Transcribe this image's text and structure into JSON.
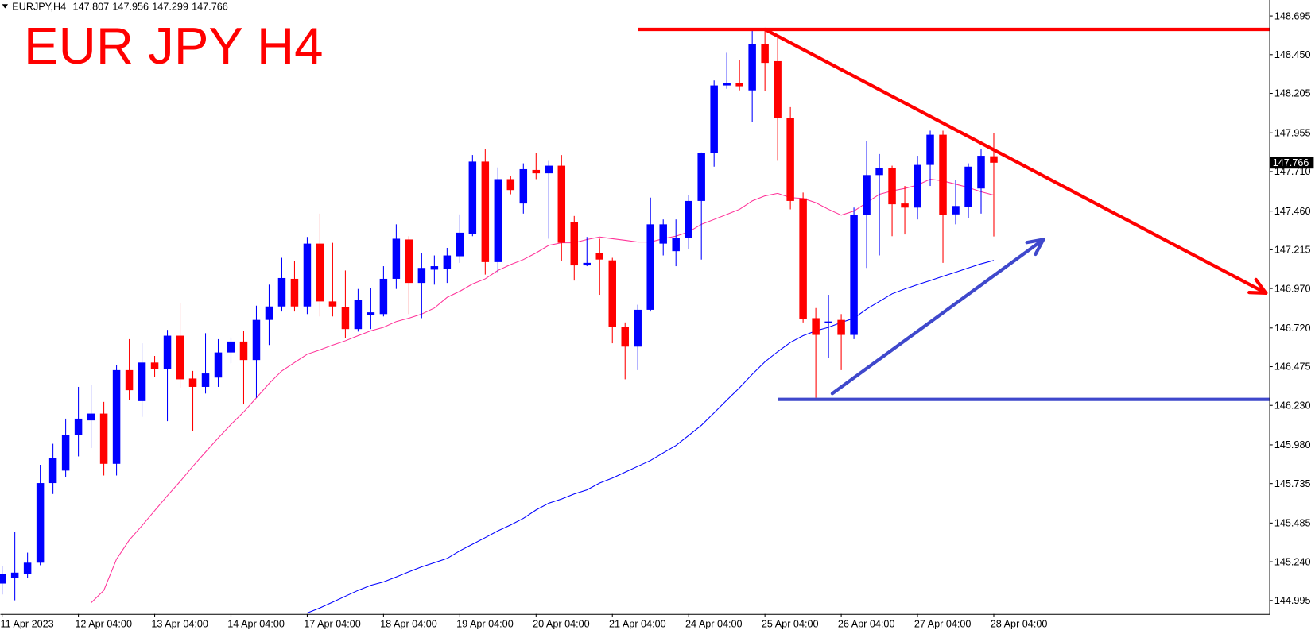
{
  "chart_data": {
    "type": "candlestick",
    "symbol": "EURJPY,H4",
    "title": "EUR JPY H4",
    "up_color": "#0000ff",
    "down_color": "#ff0000",
    "categories": [
      "11 Apr 2023",
      null,
      null,
      null,
      null,
      null,
      "12 Apr 04:00",
      null,
      null,
      null,
      null,
      null,
      "13 Apr 04:00",
      null,
      null,
      null,
      null,
      null,
      "14 Apr 04:00",
      null,
      null,
      null,
      null,
      null,
      "17 Apr 04:00",
      null,
      null,
      null,
      null,
      null,
      "18 Apr 04:00",
      null,
      null,
      null,
      null,
      null,
      "19 Apr 04:00",
      null,
      null,
      null,
      null,
      null,
      "20 Apr 04:00",
      null,
      null,
      null,
      null,
      null,
      "21 Apr 04:00",
      null,
      null,
      null,
      null,
      null,
      "24 Apr 04:00",
      null,
      null,
      null,
      null,
      null,
      "25 Apr 04:00",
      null,
      null,
      null,
      null,
      null,
      "26 Apr 04:00",
      null,
      null,
      null,
      null,
      null,
      "27 Apr 04:00",
      null,
      null,
      null,
      null,
      null,
      "28 Apr 04:00"
    ],
    "open": [
      145.102,
      145.139,
      145.16,
      145.234,
      145.738,
      145.817,
      146.045,
      146.135,
      146.178,
      145.86,
      146.453,
      146.257,
      146.501,
      146.459,
      146.671,
      146.4,
      146.347,
      146.406,
      146.565,
      146.634,
      146.517,
      146.771,
      146.856,
      147.031,
      146.856,
      147.254,
      146.888,
      146.851,
      146.713,
      146.803,
      146.808,
      147.031,
      147.28,
      147.005,
      147.089,
      147.095,
      147.174,
      147.317,
      147.773,
      147.137,
      147.662,
      147.508,
      147.72,
      147.699,
      147.747,
      147.391,
      147.116,
      147.195,
      147.148,
      146.724,
      146.602,
      146.835,
      147.254,
      147.206,
      147.291,
      147.524,
      147.826,
      148.255,
      148.271,
      148.224,
      148.515,
      148.409,
      148.049,
      147.54,
      146.782,
      146.75,
      146.771,
      146.676,
      147.434,
      147.688,
      147.731,
      147.508,
      147.482,
      147.752,
      147.943,
      147.439,
      147.487,
      147.603,
      147.807
    ],
    "high": [
      145.213,
      145.43,
      145.298,
      145.854,
      145.987,
      146.146,
      146.347,
      146.358,
      146.252,
      146.485,
      146.649,
      146.623,
      146.543,
      146.708,
      146.877,
      146.448,
      146.687,
      146.649,
      146.66,
      146.702,
      146.861,
      146.994,
      147.164,
      147.142,
      147.296,
      147.444,
      147.259,
      147.084,
      146.967,
      146.973,
      147.111,
      147.376,
      147.301,
      147.195,
      147.179,
      147.227,
      147.439,
      147.815,
      147.853,
      147.736,
      147.683,
      147.762,
      147.826,
      147.778,
      147.815,
      147.429,
      147.296,
      147.285,
      147.164,
      146.755,
      146.867,
      147.545,
      147.407,
      147.407,
      147.561,
      147.831,
      148.287,
      148.462,
      148.414,
      148.605,
      148.61,
      148.557,
      148.118,
      147.577,
      146.846,
      146.93,
      146.808,
      147.482,
      147.906,
      147.821,
      147.747,
      147.619,
      147.81,
      147.969,
      147.969,
      147.656,
      147.762,
      147.853,
      147.956
    ],
    "low": [
      145.033,
      144.996,
      145.139,
      145.218,
      145.669,
      145.775,
      145.907,
      145.96,
      145.786,
      145.786,
      146.263,
      146.157,
      146.411,
      146.13,
      146.342,
      146.066,
      146.305,
      146.347,
      146.496,
      146.236,
      146.278,
      146.612,
      146.824,
      146.824,
      146.808,
      146.793,
      146.793,
      146.655,
      146.697,
      146.713,
      146.793,
      146.967,
      146.808,
      146.782,
      146.994,
      147.005,
      147.132,
      147.301,
      147.058,
      147.068,
      147.566,
      147.444,
      147.662,
      147.285,
      147.142,
      147.02,
      147.111,
      146.93,
      146.623,
      146.395,
      146.453,
      146.824,
      147.179,
      147.111,
      147.222,
      147.153,
      147.741,
      148.234,
      148.224,
      148.022,
      148.218,
      147.778,
      147.471,
      146.755,
      146.278,
      146.528,
      146.453,
      146.649,
      147.1,
      147.179,
      147.301,
      147.312,
      147.407,
      147.619,
      147.132,
      147.376,
      147.418,
      147.444,
      147.299
    ],
    "close": [
      145.165,
      145.171,
      145.234,
      145.738,
      145.897,
      146.045,
      146.146,
      146.178,
      145.86,
      146.453,
      146.326,
      146.501,
      146.459,
      146.671,
      146.395,
      146.347,
      146.432,
      146.565,
      146.634,
      146.517,
      146.771,
      146.856,
      147.036,
      146.856,
      147.254,
      146.888,
      146.856,
      146.713,
      146.899,
      146.819,
      147.031,
      147.285,
      147.005,
      147.1,
      147.111,
      147.179,
      147.323,
      147.773,
      147.137,
      147.662,
      147.593,
      147.725,
      147.699,
      147.747,
      147.259,
      147.116,
      147.132,
      147.153,
      146.724,
      146.602,
      146.835,
      147.376,
      147.376,
      147.291,
      147.524,
      147.826,
      148.255,
      148.271,
      148.25,
      148.515,
      148.398,
      148.049,
      147.524,
      146.777,
      146.676,
      146.761,
      146.676,
      147.434,
      147.688,
      147.731,
      147.503,
      147.482,
      147.752,
      147.943,
      147.434,
      147.492,
      147.741,
      147.81,
      147.766
    ],
    "overlays": [
      {
        "color": "#ff3399",
        "values": [
          null,
          null,
          null,
          null,
          null,
          null,
          null,
          144.98,
          145.059,
          145.256,
          145.377,
          145.468,
          145.563,
          145.658,
          145.748,
          145.844,
          145.934,
          146.024,
          146.109,
          146.188,
          146.278,
          146.369,
          146.448,
          146.501,
          146.554,
          146.581,
          146.612,
          146.639,
          146.671,
          146.702,
          146.724,
          146.761,
          146.782,
          146.808,
          146.846,
          146.914,
          146.952,
          146.999,
          147.031,
          147.084,
          147.121,
          147.153,
          147.195,
          147.243,
          147.259,
          147.259,
          147.28,
          147.296,
          147.285,
          147.275,
          147.264,
          147.264,
          147.285,
          147.301,
          147.328,
          147.376,
          147.407,
          147.439,
          147.471,
          147.524,
          147.556,
          147.572,
          147.545,
          147.54,
          147.513,
          147.471,
          147.434,
          147.46,
          147.513,
          147.566,
          147.588,
          147.603,
          147.625,
          147.662,
          147.651,
          147.63,
          147.609,
          147.582,
          147.561
        ]
      },
      {
        "color": "#0000ff",
        "values": [
          null,
          null,
          null,
          null,
          null,
          null,
          null,
          null,
          null,
          null,
          null,
          null,
          null,
          null,
          null,
          null,
          null,
          null,
          null,
          null,
          null,
          null,
          null,
          null,
          144.916,
          144.948,
          144.985,
          145.022,
          145.059,
          145.091,
          145.112,
          145.144,
          145.176,
          145.208,
          145.234,
          145.261,
          145.309,
          145.351,
          145.393,
          145.436,
          145.473,
          145.515,
          145.568,
          145.611,
          145.637,
          145.669,
          145.695,
          145.738,
          145.77,
          145.807,
          145.844,
          145.881,
          145.929,
          145.976,
          146.04,
          146.104,
          146.183,
          146.263,
          146.342,
          146.427,
          146.506,
          146.57,
          146.628,
          146.671,
          146.702,
          146.724,
          146.755,
          146.782,
          146.84,
          146.888,
          146.936,
          146.967,
          146.994,
          147.02,
          147.047,
          147.073,
          147.1,
          147.126,
          147.148
        ]
      }
    ],
    "hlines": [
      {
        "value": 148.61,
        "from": 50,
        "color": "#ff0000"
      },
      {
        "value": 146.268,
        "from": 61,
        "color": "#3f48cc"
      }
    ],
    "trendlines": [
      {
        "start": [
          60,
          148.61
        ],
        "end": [
          99.4,
          146.941
        ],
        "color": "#ff0000",
        "arrow": true
      },
      {
        "start": [
          65.3,
          146.305
        ],
        "end": [
          81.9,
          147.28
        ],
        "color": "#3f48cc",
        "arrow": true
      }
    ],
    "ylim": [
      144.91,
      148.796
    ],
    "yticks": [
      148.695,
      {
        "value": 148.45,
        "label": "148.450"
      },
      148.205,
      147.955,
      {
        "value": 147.71,
        "label": "147.710"
      },
      {
        "value": 147.46,
        "label": "147.460"
      },
      147.215,
      {
        "value": 146.97,
        "label": "146.970"
      },
      {
        "value": 146.72,
        "label": "146.720"
      },
      146.475,
      {
        "value": 146.23,
        "label": "146.230"
      },
      {
        "value": 145.98,
        "label": "145.980"
      },
      145.735,
      145.485,
      {
        "value": 145.24,
        "label": "145.240"
      },
      144.995
    ]
  }
}
